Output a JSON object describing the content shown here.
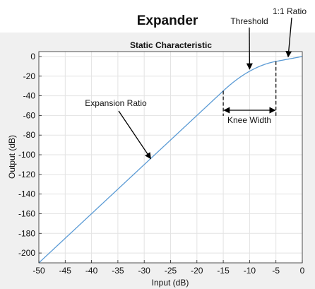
{
  "header": {
    "title": "Expander"
  },
  "annotations": {
    "threshold": "Threshold",
    "unity_ratio": "1:1 Ratio",
    "expansion_ratio": "Expansion Ratio",
    "knee_width": "Knee Width"
  },
  "colors": {
    "line": "#5b9bd5",
    "plot_background": "#ffffff",
    "figure_background": "#f0f0f0"
  },
  "chart_data": {
    "type": "line",
    "title": "Static Characteristic",
    "xlabel": "Input (dB)",
    "ylabel": "Output (dB)",
    "xlim": [
      -50,
      0
    ],
    "ylim": [
      -210,
      5
    ],
    "xticks": [
      -50,
      -45,
      -40,
      -35,
      -30,
      -25,
      -20,
      -15,
      -10,
      -5,
      0
    ],
    "yticks": [
      0,
      -20,
      -40,
      -60,
      -80,
      -100,
      -120,
      -140,
      -160,
      -180,
      -200
    ],
    "grid": true,
    "legend": "none",
    "threshold": -10,
    "knee_width": 10,
    "ratio": 5,
    "x": [
      -50,
      -45,
      -40,
      -35,
      -30,
      -25,
      -20,
      -15,
      -14,
      -13,
      -12,
      -11,
      -10,
      -9,
      -8,
      -7,
      -6,
      -5,
      -4,
      -3,
      -2,
      -1,
      0
    ],
    "y": [
      -210,
      -185,
      -160,
      -135,
      -110,
      -85,
      -60,
      -35,
      -30.2,
      -25.8,
      -21.8,
      -18.2,
      -15,
      -12.2,
      -9.8,
      -7.8,
      -6.2,
      -5,
      -4,
      -3,
      -2,
      -1,
      0
    ],
    "knee_start": -15,
    "knee_end": -5
  }
}
